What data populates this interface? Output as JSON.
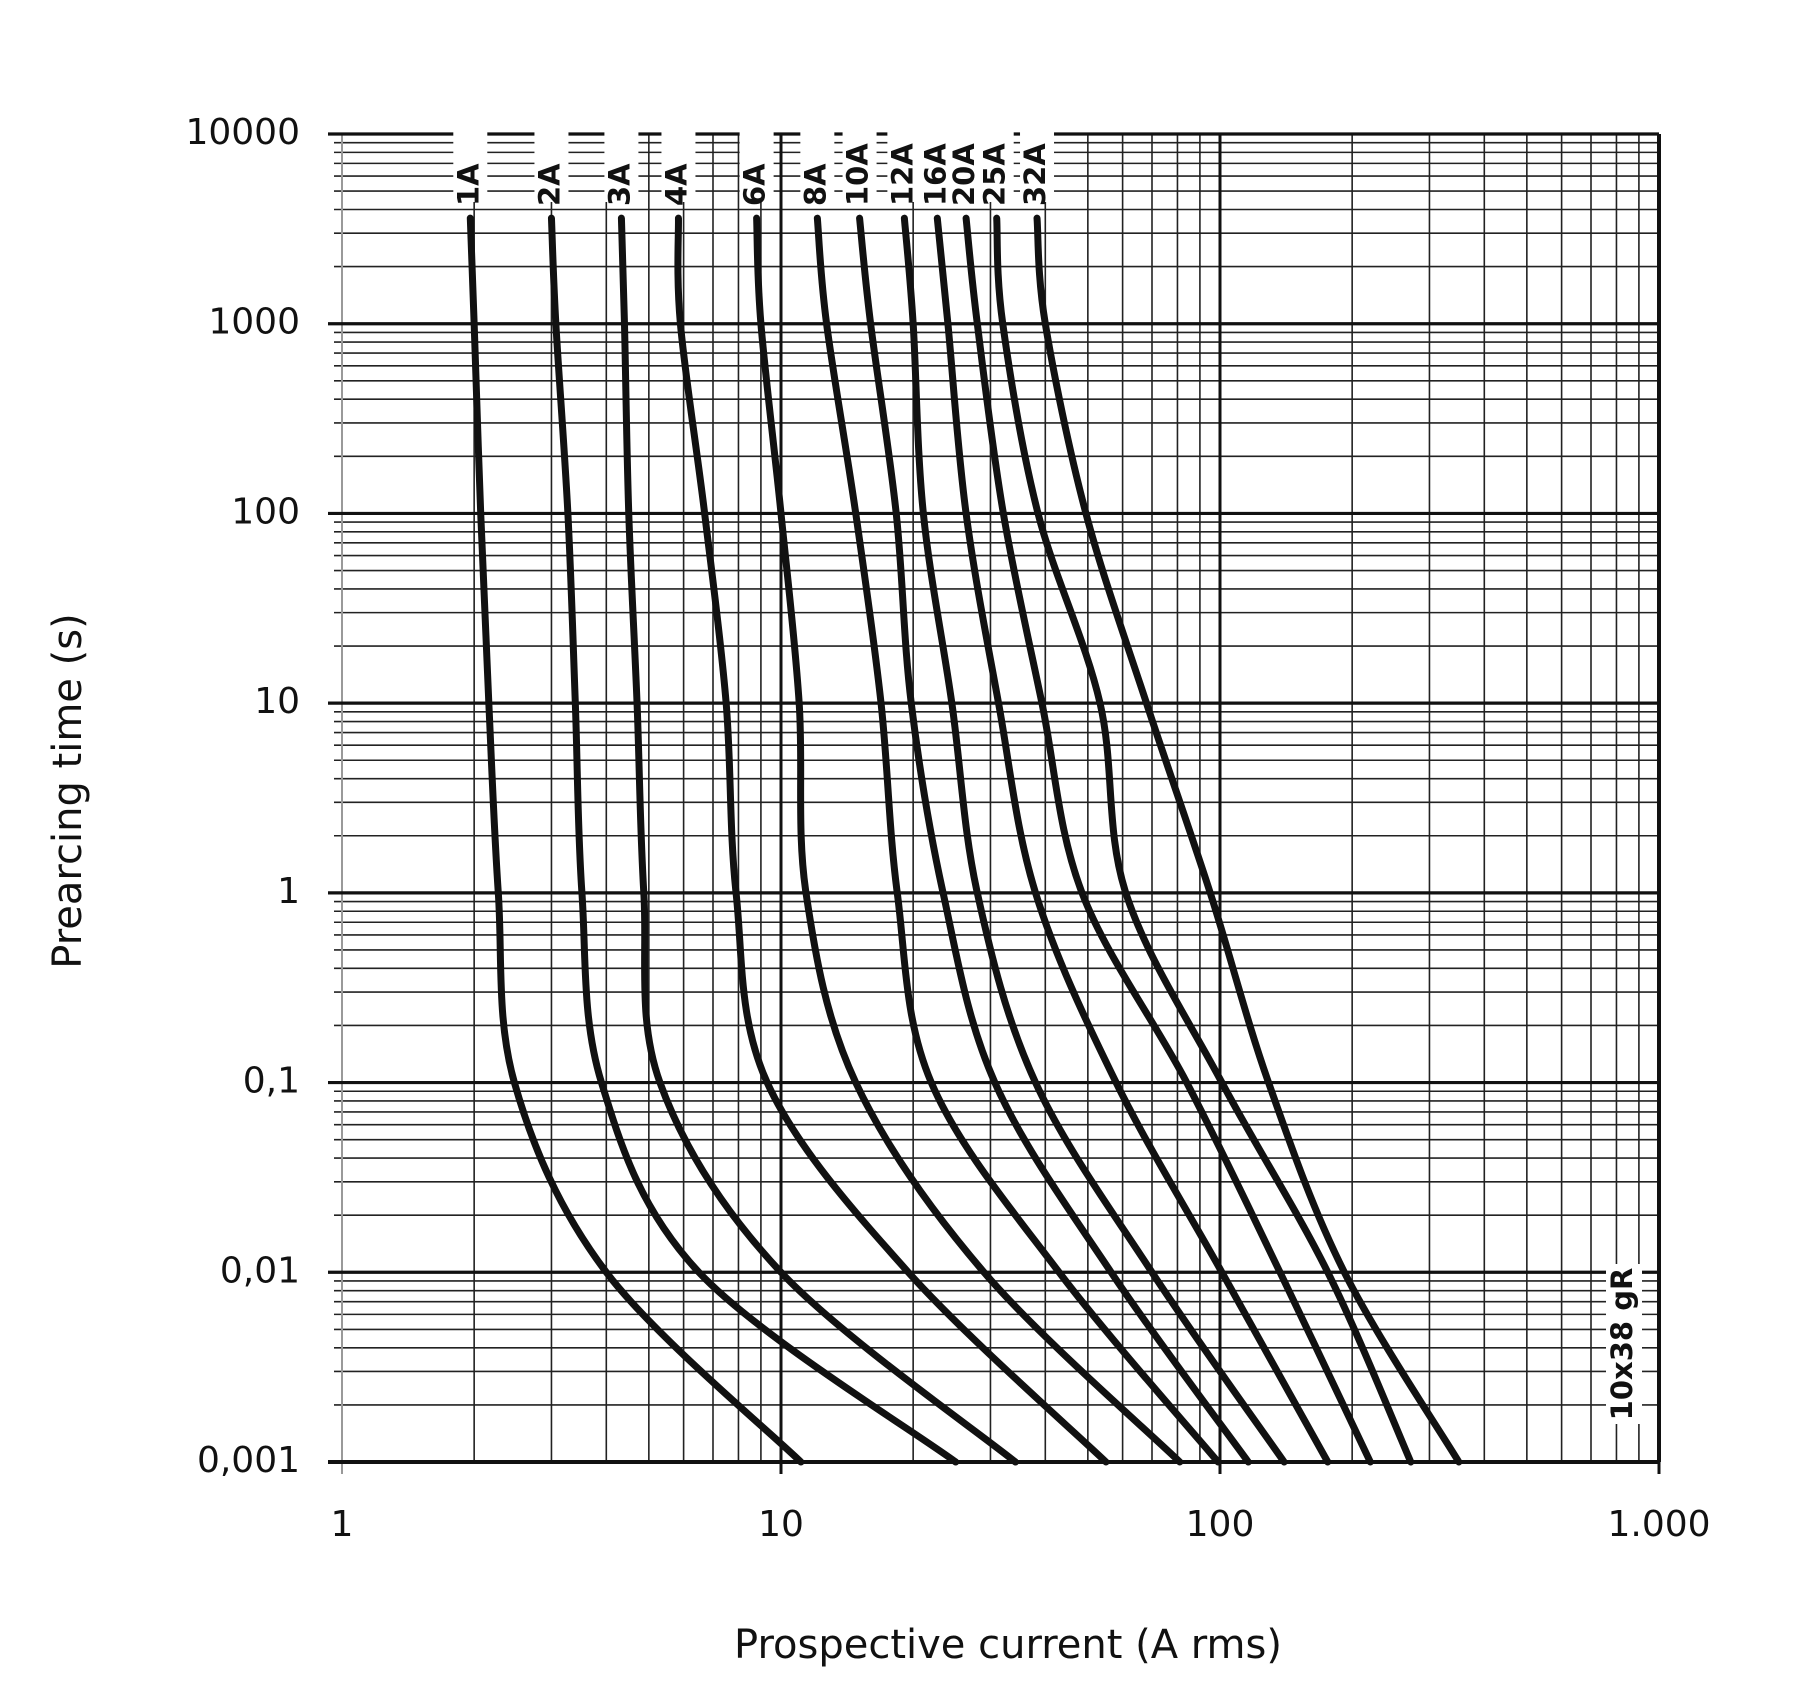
{
  "chart_data": {
    "type": "line",
    "x_label": "Prospective current (A rms)",
    "y_label": "Prearcing time (s)",
    "annotation": "10x38 gR",
    "log_x": true,
    "log_y": true,
    "grid": true,
    "minor_grid": true,
    "xlim": [
      1,
      1000
    ],
    "ylim": [
      0.001,
      10000
    ],
    "xticks": [
      1,
      10,
      100,
      {
        "value": 1000,
        "label": "1.000"
      }
    ],
    "yticks": [
      {
        "value": 0.001,
        "label": "0,001"
      },
      {
        "value": 0.01,
        "label": "0,01"
      },
      {
        "value": 0.1,
        "label": "0,1"
      },
      1,
      10,
      100,
      1000,
      10000
    ],
    "series": [
      {
        "name": "1A",
        "color": "#111111",
        "x": [
          1.96,
          2.0,
          2.07,
          2.16,
          2.27,
          2.47,
          4.0,
          11.1
        ],
        "values": [
          3600,
          1000,
          100,
          10,
          1,
          0.1,
          0.01,
          0.001
        ]
      },
      {
        "name": "2A",
        "color": "#111111",
        "x": [
          3.0,
          3.07,
          3.27,
          3.4,
          3.52,
          3.9,
          6.5,
          25
        ],
        "values": [
          3600,
          1000,
          100,
          10,
          1,
          0.1,
          0.01,
          0.001
        ]
      },
      {
        "name": "3A",
        "color": "#111111",
        "x": [
          4.33,
          4.4,
          4.5,
          4.7,
          4.87,
          5.3,
          10,
          34.2
        ],
        "values": [
          3600,
          1000,
          100,
          10,
          1,
          0.1,
          0.01,
          0.001
        ]
      },
      {
        "name": "4A",
        "color": "#111111",
        "x": [
          5.84,
          5.9,
          6.7,
          7.5,
          7.9,
          9.3,
          19.5,
          55
        ],
        "values": [
          3600,
          1000,
          100,
          10,
          1,
          0.1,
          0.01,
          0.001
        ]
      },
      {
        "name": "6A",
        "color": "#111111",
        "x": [
          8.8,
          9.0,
          10,
          11,
          11.4,
          14.8,
          29,
          81
        ],
        "values": [
          3600,
          1000,
          100,
          10,
          1,
          0.1,
          0.01,
          0.001
        ]
      },
      {
        "name": "8A",
        "color": "#111111",
        "x": [
          12.1,
          12.7,
          14.8,
          16.9,
          18.4,
          22,
          43,
          99
        ],
        "values": [
          3600,
          1000,
          100,
          10,
          1,
          0.1,
          0.01,
          0.001
        ]
      },
      {
        "name": "10A",
        "color": "#111111",
        "x": [
          15.1,
          16,
          18.3,
          19.8,
          23.4,
          30.7,
          56.5,
          116
        ],
        "values": [
          3600,
          1000,
          100,
          10,
          1,
          0.1,
          0.01,
          0.001
        ]
      },
      {
        "name": "12A",
        "color": "#111111",
        "x": [
          19.1,
          20,
          21.1,
          24.5,
          28,
          38,
          70,
          140
        ],
        "values": [
          3600,
          1000,
          100,
          10,
          1,
          0.1,
          0.01,
          0.001
        ]
      },
      {
        "name": "16A",
        "color": "#111111",
        "x": [
          22.7,
          24,
          26.4,
          31.3,
          38,
          58,
          101,
          176
        ],
        "values": [
          3600,
          1000,
          100,
          10,
          1,
          0.1,
          0.01,
          0.001
        ]
      },
      {
        "name": "20A",
        "color": "#111111",
        "x": [
          26.4,
          28,
          32.1,
          39.3,
          48.5,
          84,
          137,
          220
        ],
        "values": [
          3600,
          1000,
          100,
          10,
          1,
          0.1,
          0.01,
          0.001
        ]
      },
      {
        "name": "25A",
        "color": "#111111",
        "x": [
          31,
          32,
          38.5,
          53.3,
          61,
          101,
          176,
          272
        ],
        "values": [
          3600,
          1000,
          100,
          10,
          1,
          0.1,
          0.01,
          0.001
        ]
      },
      {
        "name": "32A",
        "color": "#111111",
        "x": [
          38.3,
          40,
          49.5,
          68,
          95,
          129,
          192,
          350
        ],
        "values": [
          3600,
          1000,
          100,
          10,
          1,
          0.1,
          0.01,
          0.001
        ]
      }
    ]
  }
}
